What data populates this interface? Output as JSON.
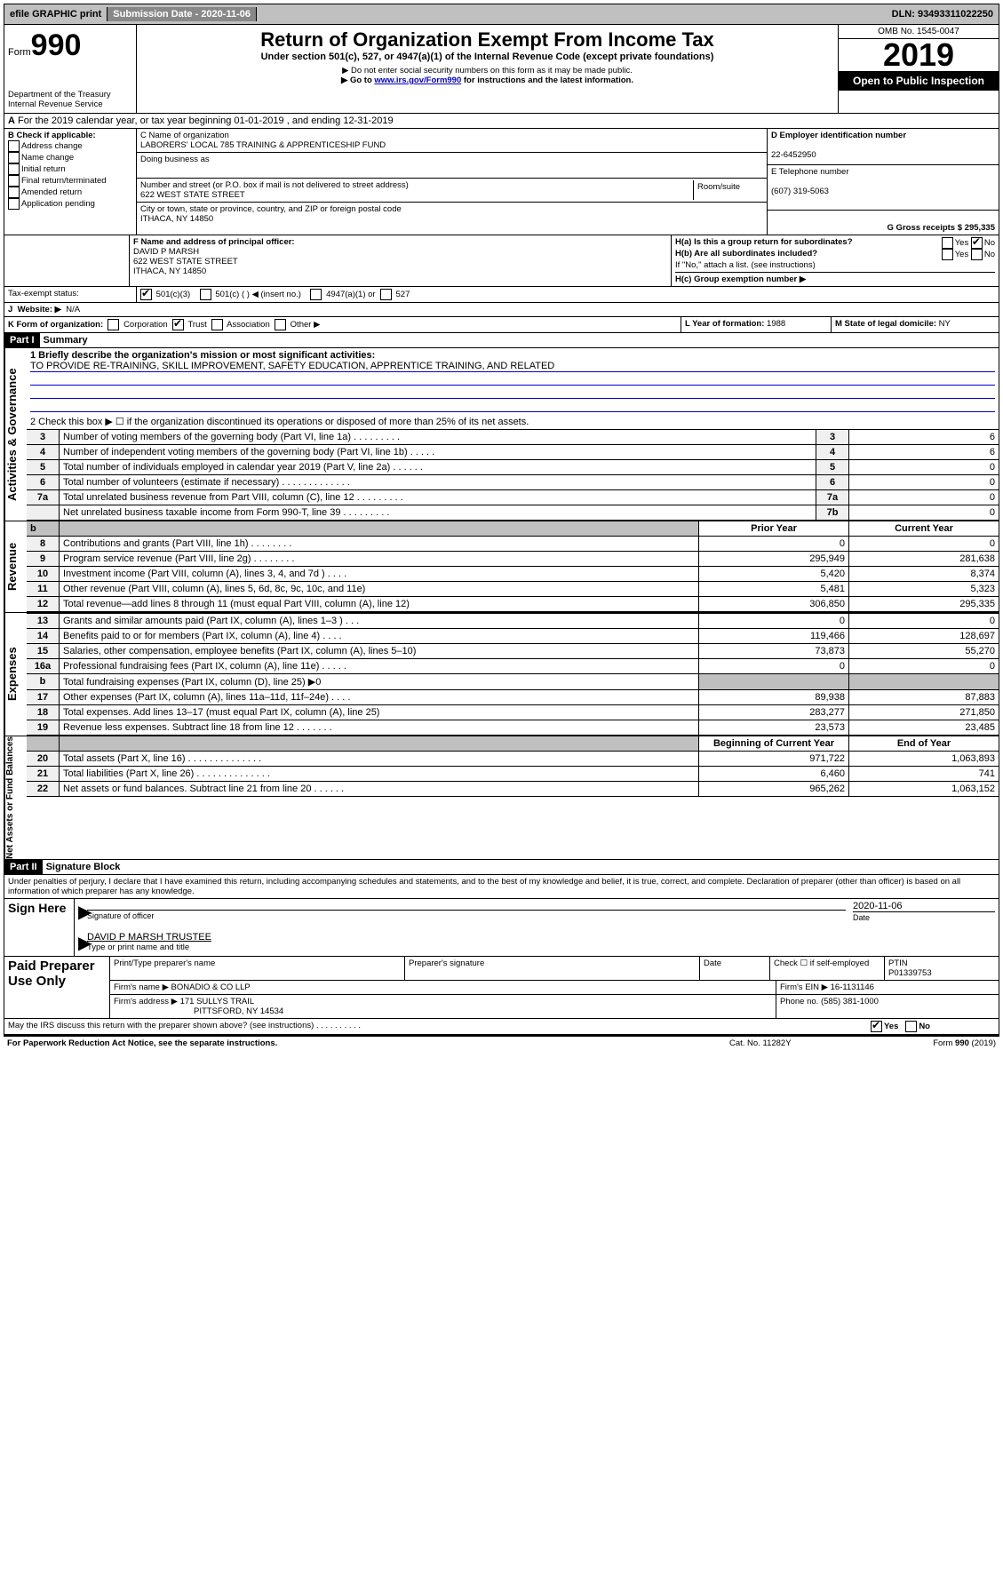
{
  "topbar": {
    "efile": "efile GRAPHIC print",
    "submission_label": "Submission Date - 2020-11-06",
    "dln": "DLN: 93493311022250"
  },
  "header": {
    "form_word": "Form",
    "form_no": "990",
    "title": "Return of Organization Exempt From Income Tax",
    "subtitle": "Under section 501(c), 527, or 4947(a)(1) of the Internal Revenue Code (except private foundations)",
    "note1": "▶ Do not enter social security numbers on this form as it may be made public.",
    "note2_pre": "▶ Go to ",
    "note2_link": "www.irs.gov/Form990",
    "note2_post": " for instructions and the latest information.",
    "dept": "Department of the Treasury\nInternal Revenue Service",
    "omb": "OMB No. 1545-0047",
    "year": "2019",
    "open": "Open to Public Inspection"
  },
  "line_a": "For the 2019 calendar year, or tax year beginning 01-01-2019   , and ending 12-31-2019",
  "box_b": {
    "label": "B Check if applicable:",
    "opts": [
      "Address change",
      "Name change",
      "Initial return",
      "Final return/terminated",
      "Amended return",
      "Application pending"
    ]
  },
  "box_c": {
    "label": "C Name of organization",
    "org": "LABORERS' LOCAL 785 TRAINING & APPRENTICESHIP FUND",
    "dba_label": "Doing business as",
    "addr_label": "Number and street (or P.O. box if mail is not delivered to street address)",
    "room_label": "Room/suite",
    "addr": "622 WEST STATE STREET",
    "city_label": "City or town, state or province, country, and ZIP or foreign postal code",
    "city": "ITHACA, NY  14850"
  },
  "box_d": {
    "label": "D Employer identification number",
    "ein": "22-6452950"
  },
  "box_e": {
    "label": "E Telephone number",
    "phone": "(607) 319-5063"
  },
  "box_g": "G Gross receipts $ 295,335",
  "box_f": {
    "label": "F  Name and address of principal officer:",
    "name": "DAVID P MARSH",
    "addr1": "622 WEST STATE STREET",
    "addr2": "ITHACA, NY  14850"
  },
  "box_h": {
    "ha": "H(a)  Is this a group return for subordinates?",
    "hb": "H(b)  Are all subordinates included?",
    "hb_note": "If \"No,\" attach a list. (see instructions)",
    "hc": "H(c)  Group exemption number ▶",
    "yes": "Yes",
    "no": "No"
  },
  "tax_exempt": {
    "label": "Tax-exempt status:",
    "o1": "501(c)(3)",
    "o2": "501(c) (   ) ◀ (insert no.)",
    "o3": "4947(a)(1) or",
    "o4": "527"
  },
  "box_i": {
    "label": "I",
    "text": "Website: ▶",
    "val": "N/A"
  },
  "box_j": {
    "label": "J",
    "text": "Website: ▶"
  },
  "box_k": {
    "label": "K Form of organization:",
    "opts": [
      "Corporation",
      "Trust",
      "Association",
      "Other ▶"
    ]
  },
  "box_l": {
    "label": "L Year of formation:",
    "val": "1988"
  },
  "box_m": {
    "label": "M State of legal domicile:",
    "val": "NY"
  },
  "part1": {
    "hdr": "Part I",
    "title": "Summary",
    "q1_label": "1  Briefly describe the organization's mission or most significant activities:",
    "q1_text": "TO PROVIDE RE-TRAINING, SKILL IMPROVEMENT, SAFETY EDUCATION, APPRENTICE TRAINING, AND RELATED",
    "q2": "2  Check this box ▶ ☐  if the organization discontinued its operations or disposed of more than 25% of its net assets.",
    "gov_label": "Activities & Governance",
    "rev_label": "Revenue",
    "exp_label": "Expenses",
    "net_label": "Net Assets or Fund Balances",
    "rows_gov": [
      {
        "n": "3",
        "t": "Number of voting members of the governing body (Part VI, line 1a)   .    .    .    .    .    .    .    .    .",
        "box": "3",
        "v": "6"
      },
      {
        "n": "4",
        "t": "Number of independent voting members of the governing body (Part VI, line 1b)   .    .    .    .    .",
        "box": "4",
        "v": "6"
      },
      {
        "n": "5",
        "t": "Total number of individuals employed in calendar year 2019 (Part V, line 2a)   .    .    .    .    .    .",
        "box": "5",
        "v": "0"
      },
      {
        "n": "6",
        "t": "Total number of volunteers (estimate if necessary)   .    .    .    .    .    .    .    .    .    .    .    .    .",
        "box": "6",
        "v": "0"
      },
      {
        "n": "7a",
        "t": "Total unrelated business revenue from Part VIII, column (C), line 12   .    .    .    .    .    .    .    .    .",
        "box": "7a",
        "v": "0"
      },
      {
        "n": "",
        "t": "Net unrelated business taxable income from Form 990-T, line 39   .    .    .    .    .    .    .    .    .",
        "box": "7b",
        "v": "0"
      }
    ],
    "col_hdr_prior": "Prior Year",
    "col_hdr_curr": "Current Year",
    "rows_rev": [
      {
        "n": "8",
        "t": "Contributions and grants (Part VIII, line 1h)   .    .    .    .    .    .    .    .",
        "p": "0",
        "c": "0"
      },
      {
        "n": "9",
        "t": "Program service revenue (Part VIII, line 2g)   .    .    .    .    .    .    .    .",
        "p": "295,949",
        "c": "281,638"
      },
      {
        "n": "10",
        "t": "Investment income (Part VIII, column (A), lines 3, 4, and 7d )   .    .    .    .",
        "p": "5,420",
        "c": "8,374"
      },
      {
        "n": "11",
        "t": "Other revenue (Part VIII, column (A), lines 5, 6d, 8c, 9c, 10c, and 11e)",
        "p": "5,481",
        "c": "5,323"
      },
      {
        "n": "12",
        "t": "Total revenue—add lines 8 through 11 (must equal Part VIII, column (A), line 12)",
        "p": "306,850",
        "c": "295,335"
      }
    ],
    "rows_exp": [
      {
        "n": "13",
        "t": "Grants and similar amounts paid (Part IX, column (A), lines 1–3 )   .    .    .",
        "p": "0",
        "c": "0"
      },
      {
        "n": "14",
        "t": "Benefits paid to or for members (Part IX, column (A), line 4)   .    .    .    .",
        "p": "119,466",
        "c": "128,697"
      },
      {
        "n": "15",
        "t": "Salaries, other compensation, employee benefits (Part IX, column (A), lines 5–10)",
        "p": "73,873",
        "c": "55,270"
      },
      {
        "n": "16a",
        "t": "Professional fundraising fees (Part IX, column (A), line 11e)   .    .    .    .    .",
        "p": "0",
        "c": "0"
      },
      {
        "n": "b",
        "t": "Total fundraising expenses (Part IX, column (D), line 25) ▶0",
        "p": "",
        "c": "",
        "shade": true
      },
      {
        "n": "17",
        "t": "Other expenses (Part IX, column (A), lines 11a–11d, 11f–24e)   .    .    .    .",
        "p": "89,938",
        "c": "87,883"
      },
      {
        "n": "18",
        "t": "Total expenses. Add lines 13–17 (must equal Part IX, column (A), line 25)",
        "p": "283,277",
        "c": "271,850"
      },
      {
        "n": "19",
        "t": "Revenue less expenses. Subtract line 18 from line 12   .    .    .    .    .    .    .",
        "p": "23,573",
        "c": "23,485"
      }
    ],
    "col_hdr_beg": "Beginning of Current Year",
    "col_hdr_end": "End of Year",
    "rows_net": [
      {
        "n": "20",
        "t": "Total assets (Part X, line 16)   .    .    .    .    .    .    .    .    .    .    .    .    .    .",
        "p": "971,722",
        "c": "1,063,893"
      },
      {
        "n": "21",
        "t": "Total liabilities (Part X, line 26)   .    .    .    .    .    .    .    .    .    .    .    .    .    .",
        "p": "6,460",
        "c": "741"
      },
      {
        "n": "22",
        "t": "Net assets or fund balances. Subtract line 21 from line 20   .    .    .    .    .    .",
        "p": "965,262",
        "c": "1,063,152"
      }
    ]
  },
  "part2": {
    "hdr": "Part II",
    "title": "Signature Block",
    "decl": "Under penalties of perjury, I declare that I have examined this return, including accompanying schedules and statements, and to the best of my knowledge and belief, it is true, correct, and complete. Declaration of preparer (other than officer) is based on all information of which preparer has any knowledge.",
    "sign_here": "Sign Here",
    "sig_officer": "Signature of officer",
    "sig_date": "2020-11-06",
    "date_lbl": "Date",
    "officer_name": "DAVID P MARSH  TRUSTEE",
    "officer_lbl": "Type or print name and title",
    "paid": "Paid Preparer Use Only",
    "prep_name_lbl": "Print/Type preparer's name",
    "prep_sig_lbl": "Preparer's signature",
    "prep_date_lbl": "Date",
    "prep_check": "Check ☐ if self-employed",
    "ptin_lbl": "PTIN",
    "ptin": "P01339753",
    "firm_name_lbl": "Firm's name    ▶",
    "firm_name": "BONADIO & CO LLP",
    "firm_ein_lbl": "Firm's EIN ▶",
    "firm_ein": "16-1131146",
    "firm_addr_lbl": "Firm's address ▶",
    "firm_addr": "171 SULLYS TRAIL",
    "firm_city": "PITTSFORD, NY  14534",
    "firm_phone_lbl": "Phone no.",
    "firm_phone": "(585) 381-1000",
    "discuss": "May the IRS discuss this return with the preparer shown above? (see instructions)   .    .    .    .    .    .    .    .    .    .",
    "yes": "Yes",
    "no": "No"
  },
  "footer": {
    "pra": "For Paperwork Reduction Act Notice, see the separate instructions.",
    "cat": "Cat. No. 11282Y",
    "form": "Form 990 (2019)"
  }
}
